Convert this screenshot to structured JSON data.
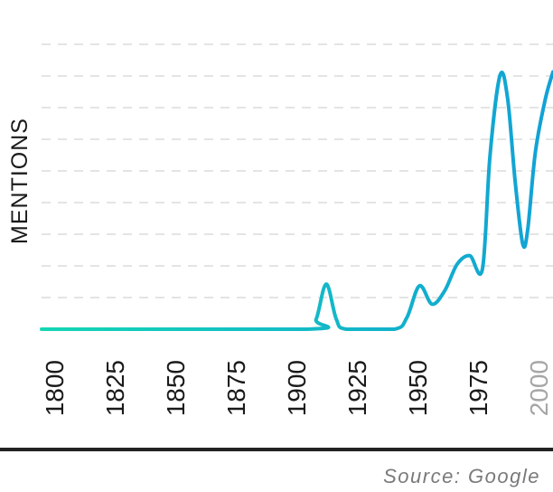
{
  "chart_data": {
    "type": "line",
    "ylabel": "MENTIONS",
    "x_ticks": [
      "1800",
      "1825",
      "1850",
      "1875",
      "1900",
      "1925",
      "1950",
      "1975",
      "2000"
    ],
    "x": [
      1800,
      1905,
      1909,
      1913,
      1917,
      1921,
      1940,
      1945,
      1950,
      1955,
      1960,
      1965,
      1970,
      1975,
      1978,
      1982,
      1985,
      1988,
      1991,
      1993,
      1996,
      2000,
      2003
    ],
    "values": [
      0,
      0,
      0.3,
      1.35,
      0.3,
      0,
      0,
      0.35,
      1.3,
      0.75,
      1.15,
      1.95,
      2.2,
      1.8,
      5.2,
      7.6,
      6.9,
      4.4,
      2.55,
      3.0,
      5.3,
      6.9,
      7.7
    ],
    "xlim": [
      1800,
      2003
    ],
    "ylim": [
      0,
      8.5
    ],
    "grid": true,
    "line_colors": [
      "#14d6b4",
      "#12a1d6"
    ],
    "source": "Source: Google"
  }
}
